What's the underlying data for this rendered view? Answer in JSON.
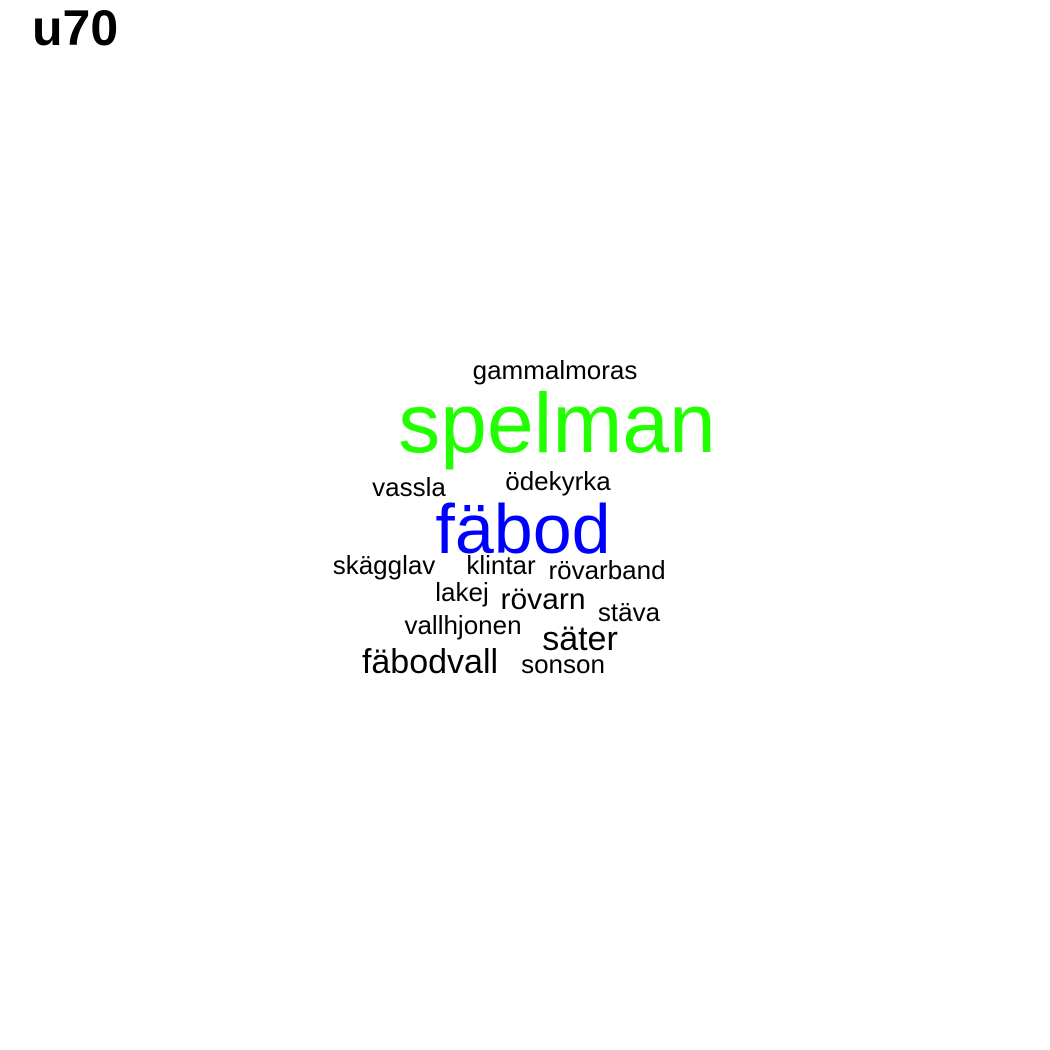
{
  "title": "u70",
  "words": [
    {
      "text": "gammalmoras",
      "color": "#000000"
    },
    {
      "text": "spelman",
      "color": "#22ff00"
    },
    {
      "text": "vassla",
      "color": "#000000"
    },
    {
      "text": "ödekyrka",
      "color": "#000000"
    },
    {
      "text": "fäbod",
      "color": "#0000ff"
    },
    {
      "text": "skägglav",
      "color": "#000000"
    },
    {
      "text": "klintar",
      "color": "#000000"
    },
    {
      "text": "rövarband",
      "color": "#000000"
    },
    {
      "text": "lakej",
      "color": "#000000"
    },
    {
      "text": "rövarn",
      "color": "#000000"
    },
    {
      "text": "stäva",
      "color": "#000000"
    },
    {
      "text": "vallhjonen",
      "color": "#000000"
    },
    {
      "text": "säter",
      "color": "#000000"
    },
    {
      "text": "fäbodvall",
      "color": "#000000"
    },
    {
      "text": "sonson",
      "color": "#000000"
    }
  ]
}
